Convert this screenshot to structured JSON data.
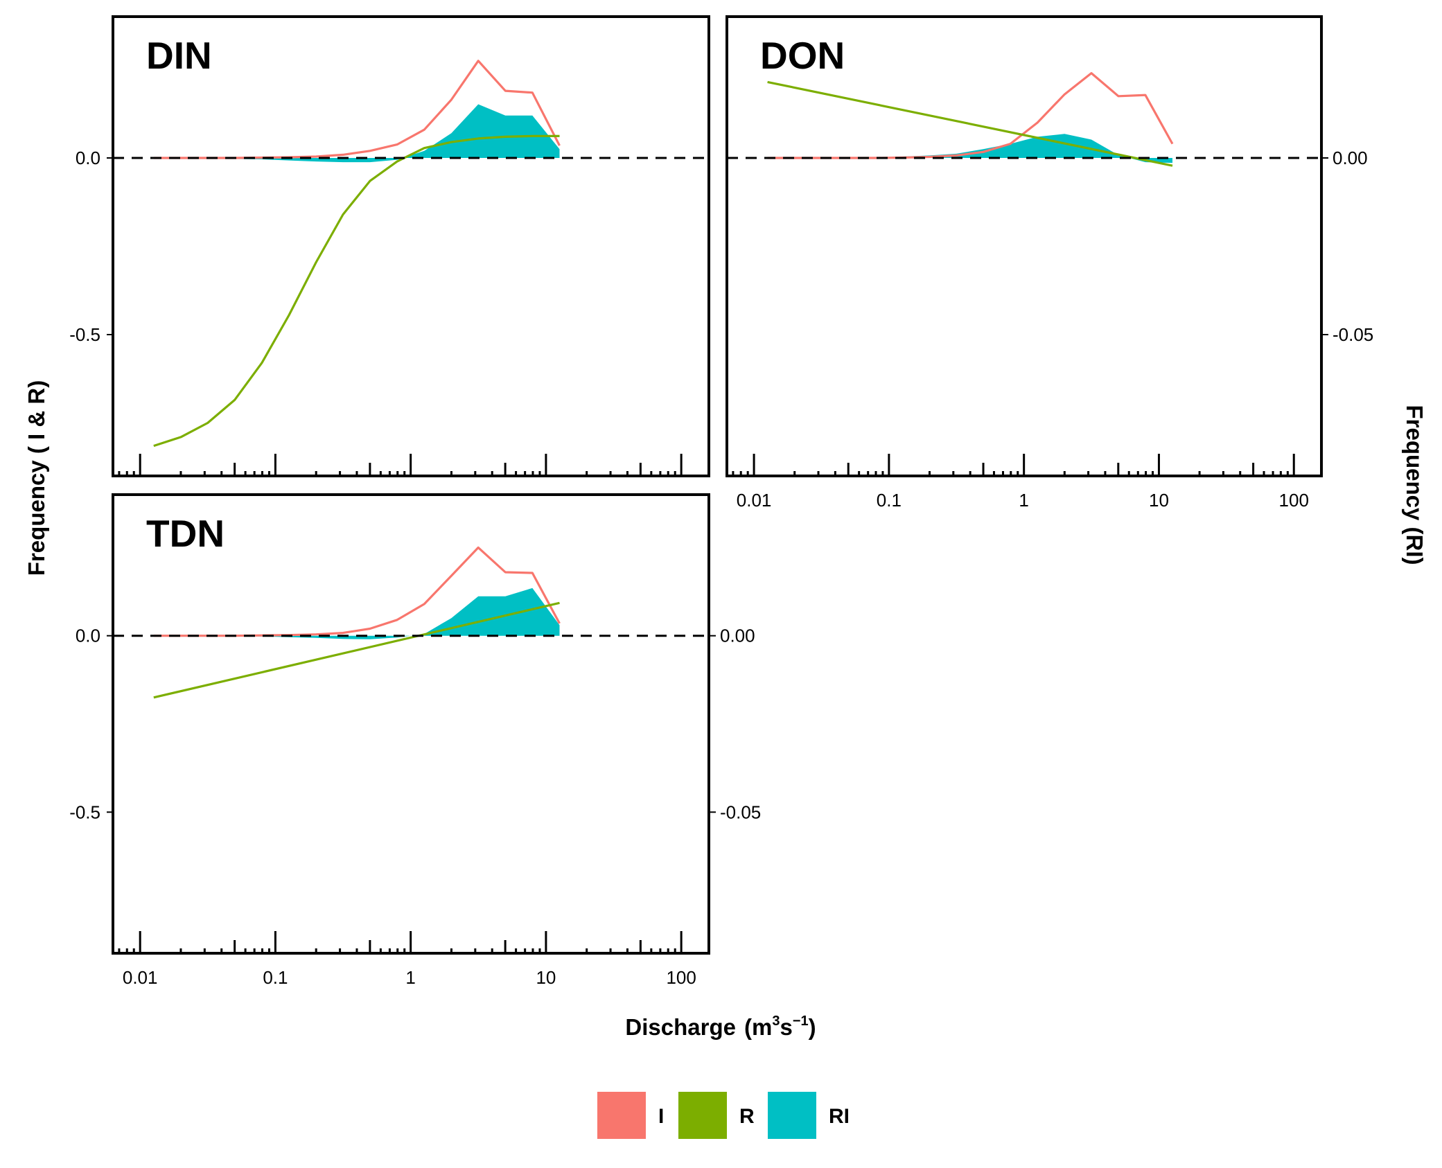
{
  "chart_data": {
    "type": "line",
    "xlabel": "Discharge",
    "ylabel_left": "Frequency ( I & R)",
    "ylabel_right": "Frequency (RI)",
    "x_scale": "log",
    "xlim": [
      0.0063,
      160
    ],
    "x_ticks": [
      0.01,
      0.1,
      1,
      10,
      100
    ],
    "x_tick_labels": [
      "0.01",
      "0.1",
      "1",
      "10",
      "100"
    ],
    "ylim_left": [
      -0.9,
      0.4
    ],
    "ylim_right": [
      -0.09,
      0.04
    ],
    "y_ticks_left": [
      -0.5,
      0.0
    ],
    "y_tick_labels_left": [
      "-0.5",
      "0.0"
    ],
    "y_ticks_right": [
      -0.05,
      0.0
    ],
    "y_tick_labels_right": [
      "-0.05",
      "0.00"
    ],
    "reference_line": 0,
    "legend": {
      "position": "bottom",
      "entries": [
        {
          "key": "I",
          "label": "I",
          "color": "#F8766D"
        },
        {
          "key": "R",
          "label": "R",
          "color": "#7CAE00"
        },
        {
          "key": "RI",
          "label": "RI",
          "color": "#00BFC4"
        }
      ]
    },
    "panels": [
      {
        "title": "DIN",
        "series": [
          {
            "name": "I",
            "style": "line",
            "axis": "left",
            "x": [
              0.0126,
              0.02,
              0.0316,
              0.05,
              0.0794,
              0.126,
              0.2,
              0.316,
              0.5,
              0.794,
              1.26,
              2.0,
              3.16,
              5.01,
              7.94,
              12.6
            ],
            "y": [
              0,
              0,
              0,
              0,
              0.001,
              0.002,
              0.004,
              0.009,
              0.02,
              0.038,
              0.08,
              0.165,
              0.275,
              0.19,
              0.185,
              0.035
            ]
          },
          {
            "name": "R",
            "style": "line",
            "axis": "left",
            "x": [
              0.0126,
              0.02,
              0.0316,
              0.05,
              0.0794,
              0.126,
              0.2,
              0.316,
              0.5,
              0.794,
              1.26,
              2.0,
              3.16,
              5.01,
              7.94,
              12.6
            ],
            "y": [
              -0.815,
              -0.79,
              -0.75,
              -0.685,
              -0.58,
              -0.445,
              -0.295,
              -0.16,
              -0.065,
              -0.01,
              0.028,
              0.045,
              0.055,
              0.06,
              0.062,
              0.062
            ]
          },
          {
            "name": "RI",
            "style": "area",
            "axis": "right",
            "x": [
              0.0126,
              0.02,
              0.0316,
              0.05,
              0.0794,
              0.126,
              0.2,
              0.316,
              0.5,
              0.794,
              1.26,
              2.0,
              3.16,
              5.01,
              7.94,
              12.6
            ],
            "y": [
              0,
              0,
              -0.0002,
              -0.0003,
              -0.0004,
              -0.0007,
              -0.001,
              -0.0012,
              -0.0012,
              -0.0005,
              0.002,
              0.007,
              0.0152,
              0.012,
              0.012,
              0.0025
            ]
          }
        ]
      },
      {
        "title": "DON",
        "series": [
          {
            "name": "I",
            "style": "line",
            "axis": "left",
            "x": [
              0.0126,
              0.02,
              0.0316,
              0.05,
              0.0794,
              0.126,
              0.2,
              0.316,
              0.5,
              0.794,
              1.26,
              2.0,
              3.16,
              5.01,
              7.94,
              12.6
            ],
            "y": [
              0,
              0,
              0,
              0,
              0,
              0.001,
              0.003,
              0.007,
              0.017,
              0.04,
              0.1,
              0.18,
              0.24,
              0.175,
              0.178,
              0.04
            ]
          },
          {
            "name": "R",
            "style": "line",
            "axis": "left",
            "x": [
              0.0126,
              12.6
            ],
            "y": [
              0.215,
              -0.022
            ]
          },
          {
            "name": "RI",
            "style": "area",
            "axis": "right",
            "x": [
              0.0126,
              0.02,
              0.0316,
              0.05,
              0.0794,
              0.126,
              0.2,
              0.316,
              0.5,
              0.794,
              1.26,
              2.0,
              3.16,
              5.01,
              7.94,
              12.6
            ],
            "y": [
              0,
              0,
              0,
              0.0001,
              0.0002,
              0.0004,
              0.0007,
              0.0012,
              0.0025,
              0.004,
              0.006,
              0.0068,
              0.0052,
              0.0008,
              -0.0012,
              -0.0014
            ]
          }
        ]
      },
      {
        "title": "TDN",
        "series": [
          {
            "name": "I",
            "style": "line",
            "axis": "left",
            "x": [
              0.0126,
              0.02,
              0.0316,
              0.05,
              0.0794,
              0.126,
              0.2,
              0.316,
              0.5,
              0.794,
              1.26,
              2.0,
              3.16,
              5.01,
              7.94,
              12.6
            ],
            "y": [
              0,
              0,
              0,
              0,
              0.001,
              0.002,
              0.004,
              0.008,
              0.02,
              0.045,
              0.09,
              0.17,
              0.25,
              0.18,
              0.178,
              0.035
            ]
          },
          {
            "name": "R",
            "style": "line",
            "axis": "left",
            "x": [
              0.0126,
              12.6
            ],
            "y": [
              -0.175,
              0.093
            ]
          },
          {
            "name": "RI",
            "style": "area",
            "axis": "right",
            "x": [
              0.0126,
              0.02,
              0.0316,
              0.05,
              0.0794,
              0.126,
              0.2,
              0.316,
              0.5,
              0.794,
              1.26,
              2.0,
              3.16,
              5.01,
              7.94,
              12.6
            ],
            "y": [
              0,
              0,
              0,
              -0.0001,
              -0.0002,
              -0.0004,
              -0.0006,
              -0.0009,
              -0.001,
              -0.0005,
              0.0005,
              0.005,
              0.0112,
              0.0112,
              0.0135,
              0.003
            ]
          }
        ]
      }
    ]
  },
  "labels": {
    "x_axis_main": "Discharge",
    "x_axis_unit_open": "(m",
    "x_axis_unit_sup1": "3",
    "x_axis_unit_mid": "s",
    "x_axis_unit_sup2": "−1",
    "x_axis_unit_close": ")",
    "y_axis_left": "Frequency ( I & R)",
    "y_axis_right": "Frequency (RI)"
  }
}
